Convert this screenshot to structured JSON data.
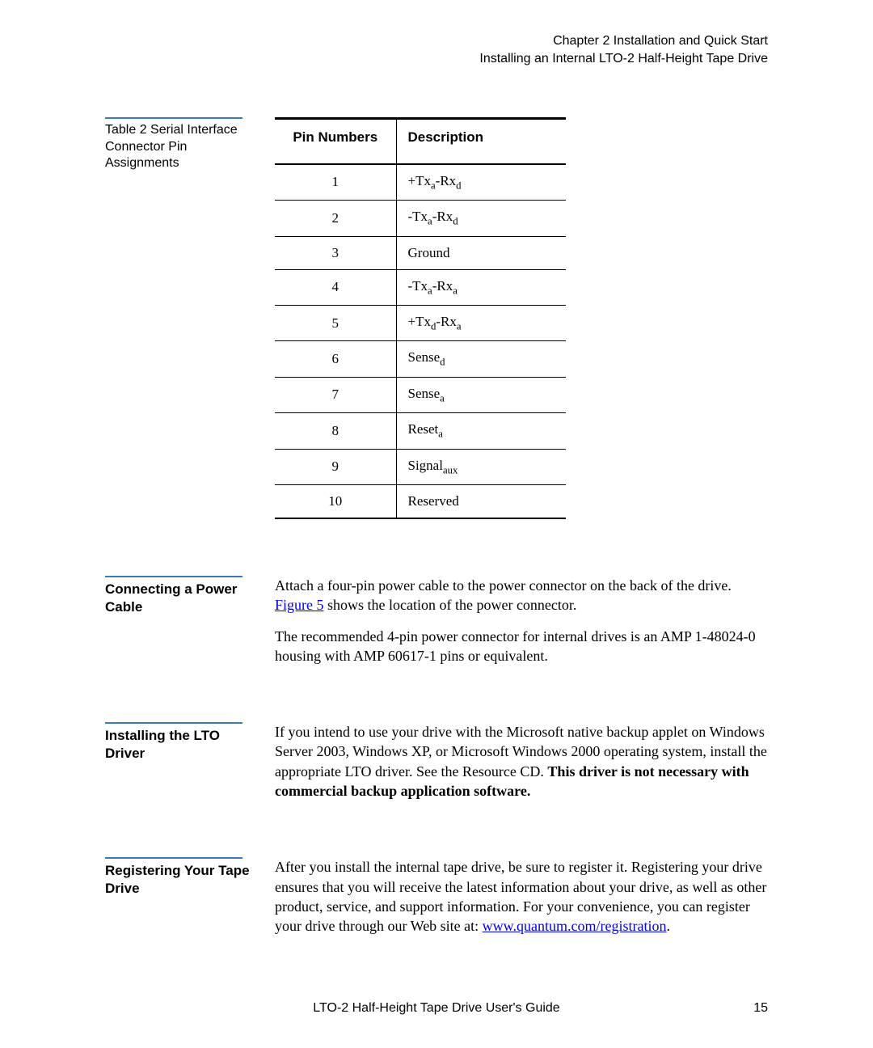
{
  "header": {
    "line1": "Chapter 2  Installation and Quick Start",
    "line2": "Installing an Internal LTO-2 Half-Height Tape Drive"
  },
  "table_section": {
    "caption_prefix": "Table 2   ",
    "caption_rest": "Serial Interface Connector Pin Assignments",
    "columns": [
      "Pin Numbers",
      "Description"
    ],
    "rows": [
      {
        "pin": "1",
        "desc_html": "+Tx<span class=\"sub\">a</span>-Rx<span class=\"sub\">d</span>"
      },
      {
        "pin": "2",
        "desc_html": "-Tx<span class=\"sub\">a</span>-Rx<span class=\"sub\">d</span>"
      },
      {
        "pin": "3",
        "desc_html": "Ground"
      },
      {
        "pin": "4",
        "desc_html": "-Tx<span class=\"sub\">a</span>-Rx<span class=\"sub\">a</span>"
      },
      {
        "pin": "5",
        "desc_html": "+Tx<span class=\"sub\">d</span>-Rx<span class=\"sub\">a</span>"
      },
      {
        "pin": "6",
        "desc_html": "Sense<span class=\"sub\">d</span>"
      },
      {
        "pin": "7",
        "desc_html": "Sense<span class=\"sub\">a</span>"
      },
      {
        "pin": "8",
        "desc_html": "Reset<span class=\"sub\">a</span>"
      },
      {
        "pin": "9",
        "desc_html": "Signal<span class=\"sub\">aux</span>"
      },
      {
        "pin": "10",
        "desc_html": "Reserved"
      }
    ]
  },
  "sections": {
    "power": {
      "title": "Connecting a Power Cable",
      "p1_pre": "Attach a four-pin power cable to the power connector on the back of the drive. ",
      "p1_link": "Figure 5",
      "p1_post": " shows the location of the power connector.",
      "p2": "The recommended 4-pin power connector for internal drives is an AMP 1-48024-0 housing with AMP 60617-1 pins or equivalent."
    },
    "driver": {
      "title": "Installing the LTO Driver",
      "p1_plain": "If you intend to use your drive with the Microsoft native backup applet on Windows Server 2003, Windows XP, or Microsoft Windows 2000 operating system, install the appropriate LTO driver. See the Resource CD. ",
      "p1_bold": "This driver is not necessary with commercial backup application software."
    },
    "register": {
      "title": "Registering Your Tape Drive",
      "p1_pre": "After you install the internal tape drive, be sure to register it. Registering your drive ensures that you will receive the latest information about your drive, as well as other product, service, and support information. For your convenience, you can register your drive through our Web site at: ",
      "p1_link": "www.quantum.com/registration",
      "p1_post": "."
    }
  },
  "footer": {
    "center": "LTO-2 Half-Height Tape Drive User's Guide",
    "page": "15"
  }
}
